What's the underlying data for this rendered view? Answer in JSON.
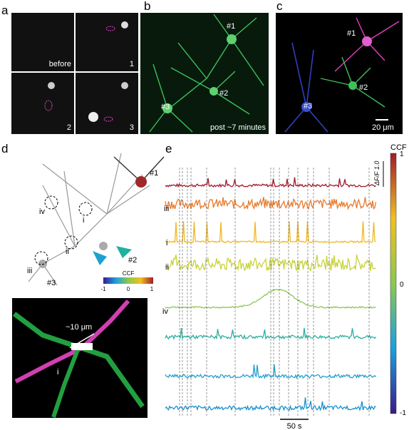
{
  "panels": {
    "a": {
      "label": "a",
      "tiles": [
        "before",
        "1",
        "2",
        "3"
      ]
    },
    "b": {
      "label": "b",
      "cells": [
        "#1",
        "#2",
        "#3"
      ],
      "caption": "post ~7 minutes"
    },
    "c": {
      "label": "c",
      "cells": [
        "#1",
        "#2",
        "#3"
      ],
      "scale_bar": "20 μm"
    },
    "d": {
      "label": "d",
      "cells": [
        "#1",
        "#2",
        "#3"
      ],
      "regions": [
        "i",
        "ii",
        "iii",
        "iv"
      ],
      "colorbar": {
        "title": "CCF",
        "ticks": [
          -1,
          0,
          1
        ]
      },
      "inset": {
        "distance": "~10 μm",
        "region": "i"
      }
    },
    "e": {
      "label": "e",
      "colorbar": {
        "title": "CCF",
        "ticks": [
          1,
          0,
          -1
        ]
      },
      "scale_y": "ΔF/F 1.0",
      "trace_labels": [
        "iii",
        "i",
        "ii",
        "iv"
      ],
      "scale_x": "50 s"
    }
  }
}
